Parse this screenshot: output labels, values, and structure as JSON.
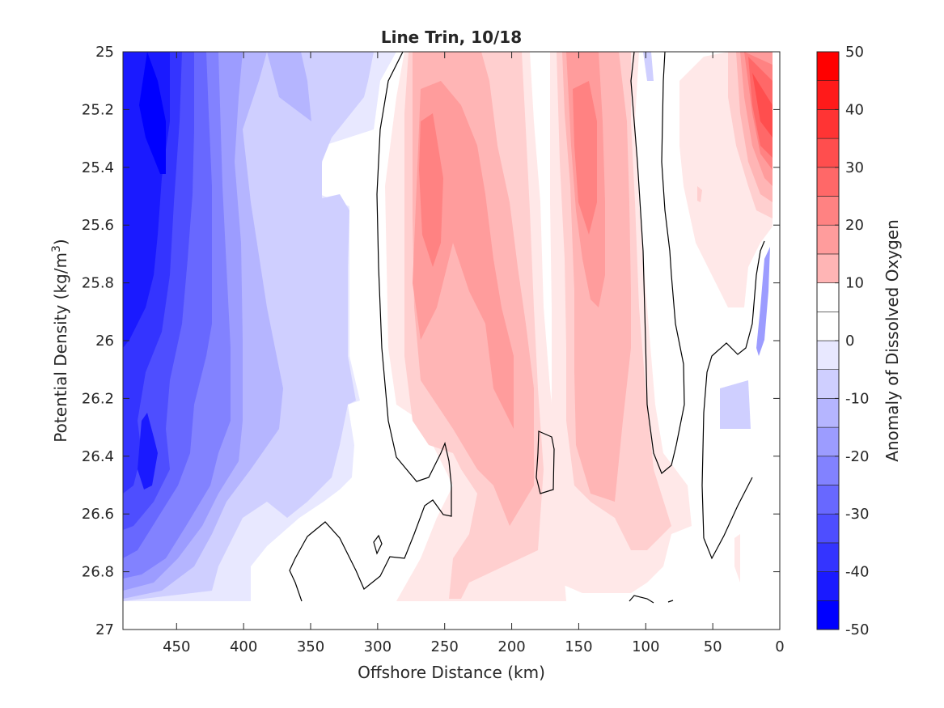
{
  "chart_data": {
    "type": "contour",
    "title": "Line Trin, 10/18",
    "xlabel": "Offshore Distance (km)",
    "ylabel": "Potential Density (kg/m",
    "ylabel_superscript": "3",
    "ylabel_suffix": ")",
    "xlim": [
      490,
      0
    ],
    "ylim": [
      25,
      27
    ],
    "x_reversed": true,
    "y_reversed": true,
    "xticks": [
      450,
      400,
      350,
      300,
      250,
      200,
      150,
      100,
      50,
      0
    ],
    "xtick_labels": [
      "450",
      "400",
      "350",
      "300",
      "250",
      "200",
      "150",
      "100",
      "50",
      "0"
    ],
    "yticks": [
      25,
      25.2,
      25.4,
      25.6,
      25.8,
      26,
      26.2,
      26.4,
      26.6,
      26.8,
      27
    ],
    "ytick_labels": [
      "25",
      "25.2",
      "25.4",
      "25.6",
      "25.8",
      "26",
      "26.2",
      "26.4",
      "26.6",
      "26.8",
      "27"
    ],
    "grid": false,
    "colorbar": {
      "label": "Anomaly of Dissolved Oxygen",
      "range": [
        -50,
        50
      ],
      "levels": [
        -50,
        -45,
        -40,
        -35,
        -30,
        -25,
        -20,
        -15,
        -10,
        -5,
        0,
        5,
        10,
        15,
        20,
        25,
        30,
        35,
        40,
        45,
        50
      ],
      "ticks": [
        50,
        40,
        30,
        20,
        10,
        0,
        -10,
        -20,
        -30,
        -40,
        -50
      ],
      "tick_labels": [
        "50",
        "40",
        "30",
        "20",
        "10",
        "0",
        "-10",
        "-20",
        "-30",
        "-40",
        "-50"
      ],
      "colors": [
        "#0000ff",
        "#1a1aff",
        "#3434ff",
        "#4e4eff",
        "#6868ff",
        "#8282ff",
        "#9c9cff",
        "#b5b5ff",
        "#cfcfff",
        "#e8e8ff",
        "#ffffff",
        "#ffffff",
        "#ffe8e8",
        "#ffcfcf",
        "#ffb5b5",
        "#ff9c9c",
        "#ff8282",
        "#ff6868",
        "#ff4e4e",
        "#ff3434",
        "#ff1a1a",
        "#ff0000"
      ]
    },
    "zero_contour_color": "#000000"
  }
}
